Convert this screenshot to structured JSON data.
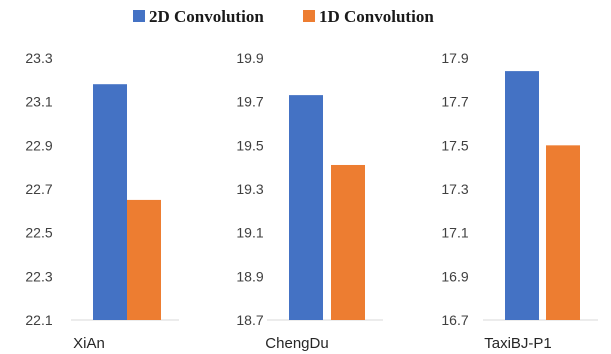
{
  "chart_data": [
    {
      "type": "bar",
      "categories": [
        "XiAn"
      ],
      "series": [
        {
          "name": "2D Convolution",
          "values": [
            23.18
          ]
        },
        {
          "name": "1D Convolution",
          "values": [
            22.65
          ]
        }
      ],
      "ylim": [
        22.1,
        23.3
      ],
      "yticks": [
        "22.1",
        "22.3",
        "22.5",
        "22.7",
        "22.9",
        "23.1",
        "23.3"
      ],
      "xlabel": "",
      "ylabel": ""
    },
    {
      "type": "bar",
      "categories": [
        "ChengDu"
      ],
      "series": [
        {
          "name": "2D Convolution",
          "values": [
            19.73
          ]
        },
        {
          "name": "1D Convolution",
          "values": [
            19.41
          ]
        }
      ],
      "ylim": [
        18.7,
        19.9
      ],
      "yticks": [
        "18.7",
        "18.9",
        "19.1",
        "19.3",
        "19.5",
        "19.7",
        "19.9"
      ],
      "xlabel": "",
      "ylabel": ""
    },
    {
      "type": "bar",
      "categories": [
        "TaxiBJ-P1"
      ],
      "series": [
        {
          "name": "2D Convolution",
          "values": [
            17.84
          ]
        },
        {
          "name": "1D Convolution",
          "values": [
            17.5
          ]
        }
      ],
      "ylim": [
        16.7,
        17.9
      ],
      "yticks": [
        "16.7",
        "16.9",
        "17.1",
        "17.3",
        "17.5",
        "17.7",
        "17.9"
      ],
      "xlabel": "",
      "ylabel": ""
    }
  ],
  "legend": {
    "position": "top-center",
    "items": [
      {
        "label": "2D Convolution",
        "color": "#4472c4"
      },
      {
        "label": "1D Convolution",
        "color": "#ed7d31"
      }
    ]
  },
  "grid": false
}
